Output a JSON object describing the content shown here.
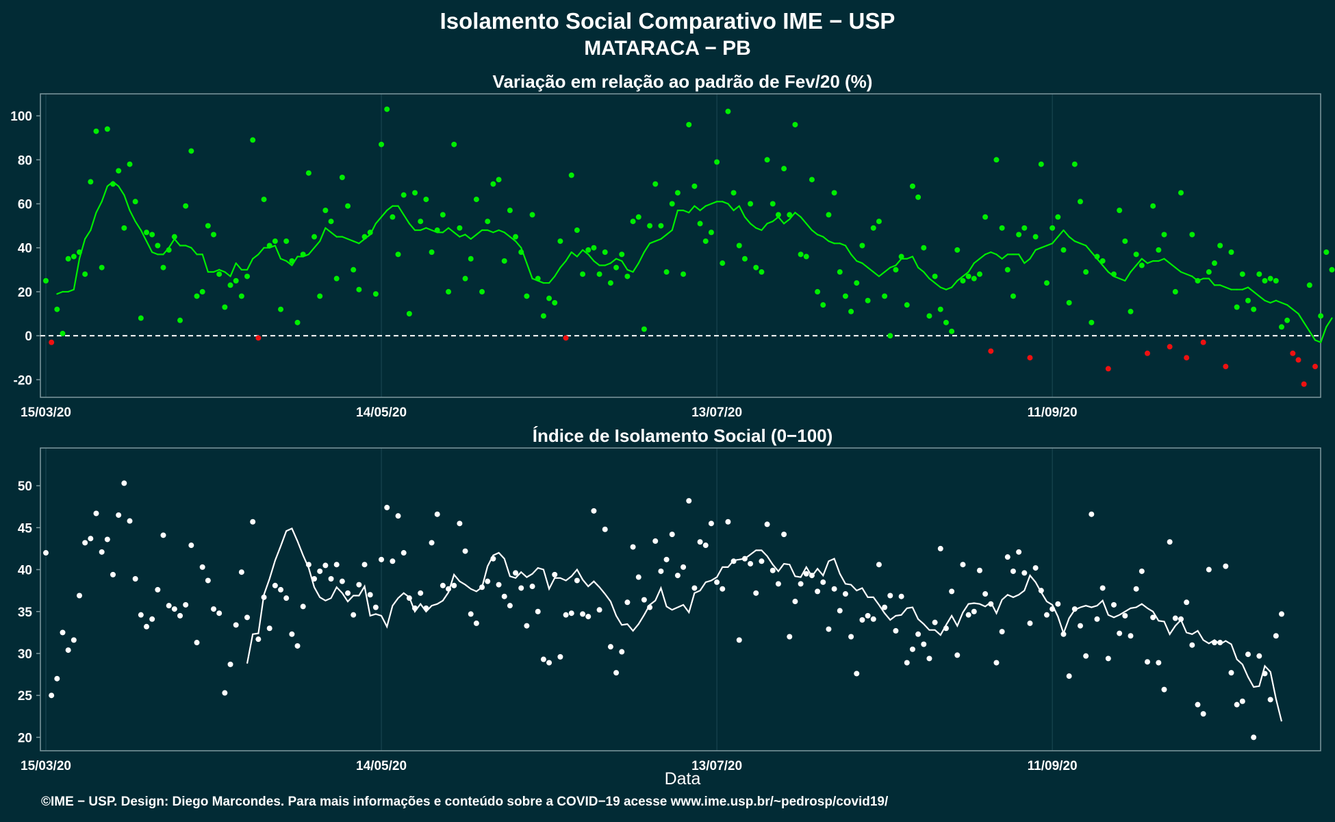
{
  "title": "Isolamento Social Comparativo IME − USP",
  "subtitle": "MATARACA − PB",
  "xlabel": "Data",
  "caption": "©IME − USP. Design: Diego Marcondes. Para mais informações e conteúdo sobre a COVID−19 acesse www.ime.usp.br/~pedrosp/covid19/",
  "colors": {
    "background": "#022b35",
    "positive": "#00ee00",
    "negative": "#ee1111",
    "index": "#ffffff",
    "grid": "#1d4a55",
    "frame": "#7f9aa0"
  },
  "chart_data": [
    {
      "type": "scatter",
      "title": "Variação em relação ao padrão de Fev/20 (%)",
      "x_start": "2020-03-15",
      "x_end": "2020-10-28",
      "x_ticks": [
        {
          "date": "2020-03-15",
          "label": "15/03/20"
        },
        {
          "date": "2020-05-14",
          "label": "14/05/20"
        },
        {
          "date": "2020-07-13",
          "label": "13/07/20"
        },
        {
          "date": "2020-09-11",
          "label": "11/09/20"
        }
      ],
      "ylim": [
        -28,
        110
      ],
      "y_ticks": [
        -20,
        0,
        20,
        40,
        60,
        80,
        100
      ],
      "reference_line": 0,
      "values": [
        25,
        -3,
        12,
        1,
        35,
        36,
        38,
        28,
        70,
        93,
        31,
        94,
        69,
        75,
        49,
        78,
        61,
        8,
        47,
        46,
        41,
        31,
        39,
        45,
        7,
        59,
        84,
        18,
        20,
        50,
        46,
        28,
        13,
        23,
        25,
        18,
        27,
        89,
        -1,
        62,
        41,
        43,
        12,
        43,
        34,
        6,
        37,
        74,
        45,
        18,
        57,
        52,
        26,
        72,
        59,
        30,
        21,
        45,
        47,
        19,
        87,
        103,
        54,
        37,
        64,
        10,
        65,
        52,
        62,
        38,
        48,
        55,
        20,
        87,
        49,
        26,
        35,
        62,
        20,
        52,
        69,
        71,
        34,
        57,
        45,
        38,
        18,
        55,
        26,
        9,
        17,
        15,
        43,
        -1,
        73,
        48,
        28,
        39,
        40,
        28,
        38,
        24,
        31,
        37,
        27,
        52,
        54,
        3,
        50,
        69,
        50,
        29,
        60,
        65,
        28,
        96,
        68,
        51,
        43,
        47,
        79,
        33,
        102,
        65,
        41,
        35,
        60,
        31,
        29,
        80,
        60,
        55,
        76,
        55,
        96,
        37,
        36,
        71,
        20,
        14,
        55,
        65,
        29,
        18,
        11,
        24,
        41,
        16,
        49,
        52,
        18,
        0,
        30,
        36,
        14,
        68,
        63,
        40,
        9,
        27,
        12,
        6,
        2,
        39,
        25,
        27,
        26,
        28,
        54,
        -7,
        80,
        49,
        30,
        18,
        46,
        49,
        -10,
        45,
        78,
        24,
        49,
        54,
        39,
        15,
        78,
        61,
        29,
        6,
        36,
        34,
        -15,
        28,
        57,
        43,
        11,
        37,
        32,
        -8,
        59,
        39,
        46,
        -5,
        20,
        65,
        -10,
        46,
        25,
        -3,
        29,
        33,
        41,
        -14,
        38,
        13,
        28,
        16,
        12,
        28,
        25,
        26,
        25,
        4,
        7,
        -8,
        -11,
        -22,
        23,
        -14,
        9,
        38,
        30
      ],
      "moving_average": [
        19,
        20,
        20,
        21,
        35,
        44,
        48,
        56,
        61,
        68,
        70,
        68,
        64,
        57,
        52,
        48,
        43,
        38,
        37,
        37,
        40,
        44,
        41,
        41,
        40,
        37,
        37,
        29,
        29,
        30,
        29,
        27,
        33,
        30,
        30,
        35,
        37,
        40,
        40,
        41,
        35,
        34,
        32,
        36,
        36,
        37,
        40,
        43,
        49,
        47,
        45,
        45,
        44,
        43,
        42,
        44,
        46,
        51,
        54,
        57,
        59,
        59,
        55,
        51,
        48,
        48,
        49,
        48,
        47,
        47,
        49,
        47,
        45,
        46,
        44,
        46,
        48,
        48,
        47,
        48,
        47,
        45,
        43,
        40,
        33,
        26,
        25,
        24,
        24,
        27,
        31,
        34,
        38,
        36,
        39,
        37,
        34,
        32,
        32,
        33,
        35,
        34,
        30,
        29,
        33,
        38,
        42,
        43,
        44,
        46,
        48,
        57,
        57,
        56,
        59,
        57,
        59,
        60,
        61,
        61,
        60,
        57,
        59,
        54,
        51,
        49,
        48,
        51,
        52,
        54,
        51,
        53,
        56,
        54,
        51,
        48,
        46,
        45,
        43,
        42,
        42,
        41,
        37,
        34,
        33,
        31,
        29,
        27,
        29,
        31,
        32,
        35,
        35,
        36,
        31,
        29,
        26,
        24,
        22,
        21,
        22,
        25,
        27,
        29,
        33,
        35,
        37,
        38,
        37,
        35,
        37,
        37,
        37,
        33,
        35,
        39,
        40,
        41,
        42,
        45,
        48,
        45,
        43,
        42,
        41,
        38,
        35,
        32,
        29,
        27,
        26,
        25,
        29,
        32,
        35,
        33,
        34,
        34,
        35,
        33,
        31,
        29,
        28,
        27,
        25,
        26,
        26,
        23,
        23,
        22,
        21,
        21,
        21,
        22,
        20,
        18,
        16,
        15,
        16,
        15,
        14,
        12,
        10,
        6,
        2,
        -2,
        -3,
        4,
        8
      ],
      "series": [
        {
          "name": "",
          "values": "values"
        }
      ]
    },
    {
      "type": "scatter",
      "title": "Índice de Isolamento Social (0−100)",
      "x_start": "2020-03-15",
      "x_end": "2020-10-28",
      "x_ticks": [
        {
          "date": "2020-03-15",
          "label": "15/03/20"
        },
        {
          "date": "2020-05-14",
          "label": "14/05/20"
        },
        {
          "date": "2020-07-13",
          "label": "13/07/20"
        },
        {
          "date": "2020-09-11",
          "label": "11/09/20"
        }
      ],
      "ylim": [
        18.4,
        54.5
      ],
      "y_ticks": [
        20,
        25,
        30,
        35,
        40,
        45,
        50
      ],
      "values": [
        42,
        25,
        27,
        32.5,
        30.4,
        31.6,
        36.9,
        43.2,
        43.7,
        46.7,
        42.1,
        43.6,
        39.4,
        46.5,
        50.3,
        45.8,
        38.9,
        34.6,
        33.2,
        34.1,
        37.6,
        44.1,
        35.7,
        35.3,
        34.5,
        35.8,
        42.9,
        31.3,
        40.3,
        38.7,
        35.3,
        34.8,
        25.3,
        28.7,
        33.4,
        39.7,
        34.3,
        45.7,
        31.7,
        36.7,
        33,
        38.1,
        37.6,
        36.6,
        32.3,
        30.9,
        35.6,
        40.6,
        38.9,
        39.8,
        40.5,
        38.9,
        40.6,
        38.6,
        37.2,
        34.6,
        38.2,
        40.6,
        37,
        35.5,
        41.2,
        47.4,
        41,
        46.4,
        42,
        36.6,
        35.4,
        37.2,
        35.4,
        43.2,
        46.6,
        38.1,
        37.7,
        38.1,
        45.5,
        42.2,
        34.7,
        33.6,
        37.9,
        38.6,
        41.3,
        38.2,
        36.8,
        35.7,
        39.6,
        37.8,
        33.3,
        38,
        35,
        29.3,
        28.9,
        39.4,
        29.6,
        34.6,
        34.8,
        38.7,
        34.7,
        34.4,
        47,
        35.2,
        44.8,
        30.8,
        27.7,
        30.2,
        36.1,
        42.7,
        39.1,
        36.4,
        35.5,
        43.4,
        39.8,
        41.2,
        44.2,
        39.3,
        40.3,
        48.2,
        37.8,
        43.3,
        42.9,
        45.5,
        38.5,
        37.7,
        45.7,
        41,
        31.6,
        41.3,
        40.7,
        37.2,
        41,
        45.4,
        39.9,
        38.3,
        44.2,
        32,
        36.2,
        38.3,
        39.5,
        39.3,
        37.4,
        38.5,
        32.9,
        37.7,
        35.1,
        37.1,
        32,
        27.6,
        34,
        34.5,
        34.1,
        40.6,
        35.5,
        36.9,
        32.7,
        36.8,
        28.9,
        30.5,
        32.3,
        31.1,
        29.4,
        33.7,
        42.5,
        33,
        37.4,
        29.8,
        40.6,
        34.6,
        35,
        39.9,
        37.1,
        35.9,
        28.9,
        32.6,
        41.5,
        39.8,
        42.1,
        39.6,
        33.6,
        40.2,
        37.5,
        34.6,
        35.3,
        35.9,
        32.3,
        27.3,
        35.3,
        33.3,
        29.7,
        46.6,
        34.1,
        37.8,
        29.4,
        35.8,
        32.4,
        34.5,
        32.1,
        37.7,
        39.8,
        29,
        34.3,
        28.9,
        25.7,
        43.3,
        34.2,
        34.1,
        36.1,
        31,
        23.9,
        22.8,
        40,
        31.3,
        31.3,
        40.4,
        27.7,
        23.9,
        24.3,
        29.9,
        20,
        29.7,
        27.6,
        24.5,
        32.1,
        34.7
      ],
      "moving_average": [
        28.8,
        32.3,
        32.4,
        37,
        38.9,
        41.1,
        42.8,
        44.6,
        44.9,
        43.4,
        41.7,
        40.2,
        37.9,
        36.7,
        36.3,
        36.6,
        37.9,
        37.2,
        36.2,
        36.9,
        36.9,
        38,
        34.5,
        34.7,
        34.5,
        33.2,
        35.7,
        36.6,
        37.2,
        36.7,
        35,
        35.9,
        35,
        35.7,
        35.9,
        36.3,
        37.3,
        39.4,
        38.6,
        38.2,
        37.7,
        37.4,
        37.9,
        40.4,
        41.7,
        42,
        41.3,
        39.2,
        39,
        39.7,
        39.1,
        39.5,
        40.2,
        40,
        37.7,
        39,
        39,
        38.7,
        39.2,
        40,
        38.8,
        38,
        38.6,
        37.9,
        37.1,
        36.2,
        34.5,
        33.4,
        33.5,
        32.7,
        33.5,
        34.6,
        35.8,
        36.3,
        37.8,
        35.6,
        35.2,
        35.5,
        35.8,
        34.9,
        37.2,
        37.5,
        38.5,
        38.7,
        39.1,
        40.3,
        40.3,
        41.1,
        41.2,
        41.3,
        41.8,
        42.3,
        42.3,
        41.6,
        40.6,
        39.8,
        40.7,
        40.6,
        39.2,
        39.1,
        40.3,
        39.2,
        40.1,
        39.3,
        41,
        41.3,
        39.5,
        38.3,
        38.2,
        37.5,
        37.8,
        36.7,
        36.7,
        35.8,
        34.8,
        34,
        34.5,
        34.6,
        35.4,
        35.5,
        34.1,
        33.5,
        32.8,
        32.8,
        32.2,
        33.4,
        34.5,
        33.3,
        34.9,
        35.9,
        36,
        35.9,
        35.6,
        36.1,
        34.8,
        36.4,
        37,
        36.7,
        37,
        37.5,
        39.3,
        38.5,
        37.3,
        36.2,
        35.8,
        34.4,
        32.4,
        34.2,
        35.2,
        35.5,
        35.7,
        35.5,
        35.7,
        36.3,
        34.6,
        34.3,
        34.6,
        35,
        35.4,
        35.5,
        35.9,
        35.4,
        35,
        33.9,
        33.8,
        32.3,
        33.3,
        34,
        32.5,
        32.3,
        32.7,
        31.6,
        31.2,
        31.6,
        31.1,
        31.5,
        31.1,
        29.3,
        28.7,
        27.2,
        26,
        26.1,
        28.5,
        27.8,
        24.6,
        21.9
      ],
      "series": [
        {
          "name": "",
          "values": "values"
        }
      ]
    }
  ]
}
